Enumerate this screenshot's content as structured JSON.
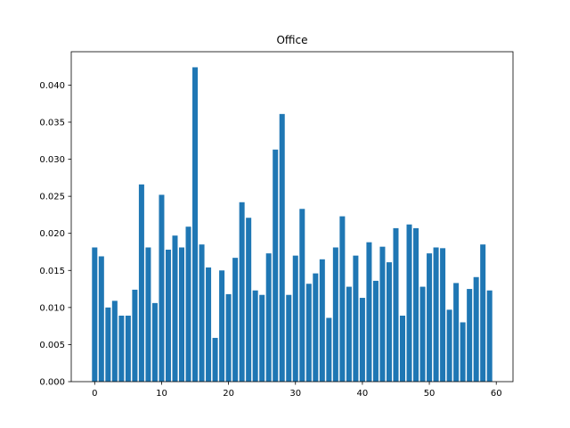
{
  "chart_data": {
    "type": "bar",
    "title": "Office",
    "xlabel": "",
    "ylabel": "",
    "xlim": [
      -3.5,
      62.5
    ],
    "ylim": [
      0,
      0.0445
    ],
    "xticks": [
      0,
      10,
      20,
      30,
      40,
      50,
      60
    ],
    "xtick_labels": [
      "0",
      "10",
      "20",
      "30",
      "40",
      "50",
      "60"
    ],
    "yticks": [
      0,
      0.005,
      0.01,
      0.015,
      0.02,
      0.025,
      0.03,
      0.035,
      0.04
    ],
    "ytick_labels": [
      "0.000",
      "0.005",
      "0.010",
      "0.015",
      "0.020",
      "0.025",
      "0.030",
      "0.035",
      "0.040"
    ],
    "grid": false,
    "color": "#1f77b4",
    "x": [
      0,
      1,
      2,
      3,
      4,
      5,
      6,
      7,
      8,
      9,
      10,
      11,
      12,
      13,
      14,
      15,
      16,
      17,
      18,
      19,
      20,
      21,
      22,
      23,
      24,
      25,
      26,
      27,
      28,
      29,
      30,
      31,
      32,
      33,
      34,
      35,
      36,
      37,
      38,
      39,
      40,
      41,
      42,
      43,
      44,
      45,
      46,
      47,
      48,
      49,
      50,
      51,
      52,
      53,
      54,
      55,
      56,
      57,
      58,
      59
    ],
    "values": [
      0.0181,
      0.0169,
      0.01,
      0.0109,
      0.0089,
      0.0089,
      0.0124,
      0.0266,
      0.0181,
      0.0106,
      0.0252,
      0.0178,
      0.0197,
      0.0181,
      0.0209,
      0.0424,
      0.0185,
      0.0154,
      0.0059,
      0.015,
      0.0118,
      0.0167,
      0.0242,
      0.0221,
      0.0123,
      0.0117,
      0.0173,
      0.0313,
      0.0361,
      0.0117,
      0.017,
      0.0233,
      0.0132,
      0.0146,
      0.0165,
      0.0086,
      0.0181,
      0.0223,
      0.0128,
      0.017,
      0.0113,
      0.0188,
      0.0136,
      0.0182,
      0.0161,
      0.0207,
      0.0089,
      0.0212,
      0.0207,
      0.0128,
      0.0173,
      0.0181,
      0.018,
      0.0097,
      0.0133,
      0.008,
      0.0125,
      0.0141,
      0.0185,
      0.0123
    ]
  }
}
